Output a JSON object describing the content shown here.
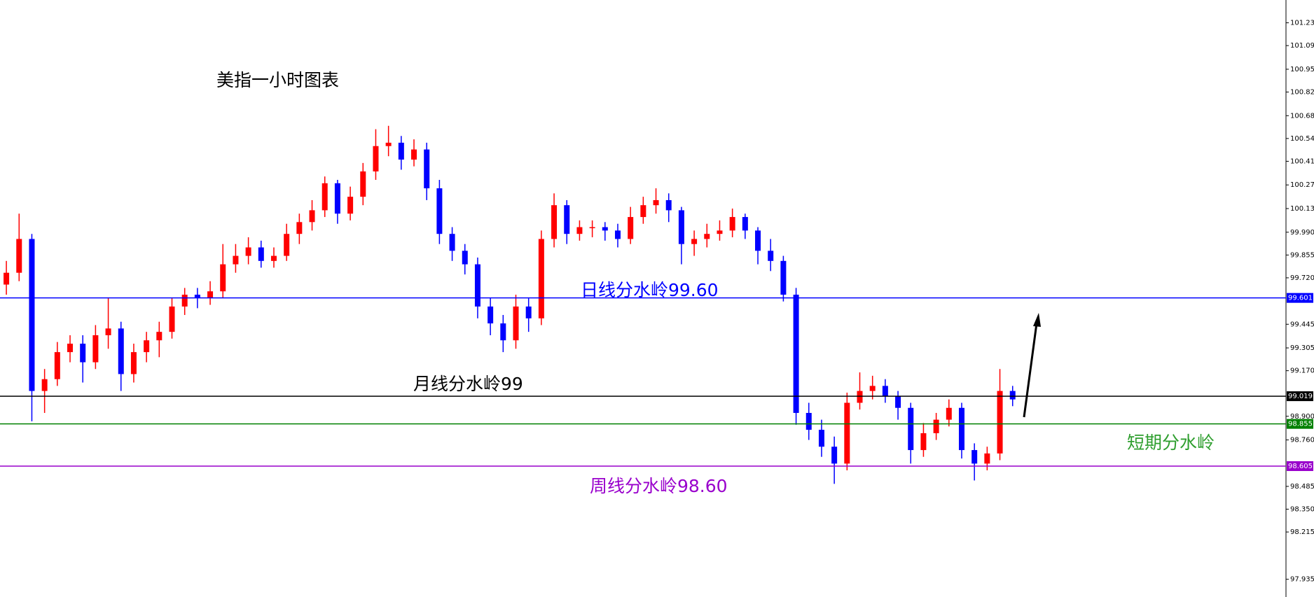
{
  "chart_data": {
    "type": "candlestick",
    "title": "美指一小时图表",
    "up_color": "#ff0000",
    "down_color": "#0000ff",
    "open": [
      99.68,
      99.75,
      99.95,
      99.05,
      99.12,
      99.28,
      99.33,
      99.22,
      99.38,
      99.42,
      99.15,
      99.28,
      99.35,
      99.4,
      99.55,
      99.62,
      99.6,
      99.64,
      99.8,
      99.85,
      99.9,
      99.82,
      99.85,
      99.98,
      100.05,
      100.12,
      100.28,
      100.1,
      100.2,
      100.35,
      100.5,
      100.52,
      100.42,
      100.48,
      100.25,
      99.98,
      99.88,
      99.8,
      99.55,
      99.45,
      99.35,
      99.55,
      99.48,
      99.95,
      100.15,
      99.98,
      100.02,
      100.02,
      100.0,
      99.95,
      100.08,
      100.15,
      100.18,
      100.12,
      99.92,
      99.95,
      99.98,
      100.0,
      100.08,
      100.0,
      99.88,
      99.82,
      99.62,
      98.92,
      98.82,
      98.72,
      98.62,
      98.98,
      99.05,
      99.08,
      99.02,
      98.95,
      98.7,
      98.8,
      98.88,
      98.95,
      98.7,
      98.62,
      98.68,
      99.05
    ],
    "high": [
      99.82,
      100.1,
      99.98,
      99.18,
      99.34,
      99.38,
      99.38,
      99.44,
      99.6,
      99.46,
      99.33,
      99.4,
      99.46,
      99.6,
      99.66,
      99.66,
      99.7,
      99.92,
      99.92,
      99.96,
      99.94,
      99.9,
      100.04,
      100.1,
      100.18,
      100.32,
      100.3,
      100.26,
      100.4,
      100.6,
      100.62,
      100.56,
      100.54,
      100.52,
      100.3,
      100.02,
      99.92,
      99.84,
      99.6,
      99.5,
      99.62,
      99.6,
      100.0,
      100.22,
      100.18,
      100.06,
      100.06,
      100.05,
      100.04,
      100.14,
      100.2,
      100.25,
      100.22,
      100.14,
      100.0,
      100.04,
      100.06,
      100.13,
      100.1,
      100.02,
      99.95,
      99.85,
      99.66,
      98.98,
      98.88,
      98.78,
      99.04,
      99.16,
      99.14,
      99.12,
      99.05,
      98.98,
      98.86,
      98.92,
      99.0,
      98.98,
      98.74,
      98.72,
      99.18,
      99.08
    ],
    "low": [
      99.62,
      99.7,
      98.87,
      98.92,
      99.08,
      99.22,
      99.1,
      99.18,
      99.3,
      99.05,
      99.1,
      99.22,
      99.25,
      99.36,
      99.5,
      99.54,
      99.56,
      99.6,
      99.75,
      99.8,
      99.78,
      99.78,
      99.82,
      99.92,
      100.0,
      100.08,
      100.04,
      100.06,
      100.15,
      100.3,
      100.44,
      100.36,
      100.38,
      100.18,
      99.92,
      99.82,
      99.74,
      99.48,
      99.38,
      99.28,
      99.3,
      99.4,
      99.44,
      99.9,
      99.92,
      99.94,
      99.96,
      99.94,
      99.9,
      99.92,
      100.04,
      100.1,
      100.05,
      99.8,
      99.85,
      99.9,
      99.94,
      99.96,
      99.95,
      99.8,
      99.76,
      99.58,
      98.85,
      98.76,
      98.66,
      98.5,
      98.58,
      98.94,
      99.0,
      98.98,
      98.88,
      98.62,
      98.66,
      98.76,
      98.84,
      98.65,
      98.52,
      98.58,
      98.64,
      98.96
    ],
    "close": [
      99.75,
      99.95,
      99.05,
      99.12,
      99.28,
      99.33,
      99.22,
      99.38,
      99.42,
      99.15,
      99.28,
      99.35,
      99.4,
      99.55,
      99.62,
      99.6,
      99.64,
      99.8,
      99.85,
      99.9,
      99.82,
      99.85,
      99.98,
      100.05,
      100.12,
      100.28,
      100.1,
      100.2,
      100.35,
      100.5,
      100.52,
      100.42,
      100.48,
      100.25,
      99.98,
      99.88,
      99.8,
      99.55,
      99.45,
      99.35,
      99.55,
      99.48,
      99.95,
      100.15,
      99.98,
      100.02,
      100.02,
      100.0,
      99.95,
      100.08,
      100.15,
      100.18,
      100.12,
      99.92,
      99.95,
      99.98,
      100.0,
      100.08,
      100.0,
      99.88,
      99.82,
      99.62,
      98.92,
      98.82,
      98.72,
      98.62,
      98.98,
      99.05,
      99.08,
      99.02,
      98.95,
      98.7,
      98.8,
      98.88,
      98.95,
      98.7,
      98.62,
      98.68,
      99.05,
      99.0
    ],
    "ylim": [
      97.83,
      101.365
    ],
    "yticks": [
      {
        "value": 101.23,
        "label": "101.230"
      },
      101.095,
      100.955,
      {
        "value": 100.82,
        "label": "100.820"
      },
      {
        "value": 100.68,
        "label": "100.680"
      },
      100.545,
      {
        "value": 100.41,
        "label": "100.410"
      },
      {
        "value": 100.27,
        "label": "100.270"
      },
      {
        "value": 100.13,
        "label": "100.130"
      },
      {
        "value": 99.99,
        "label": "99.990"
      },
      99.855,
      {
        "value": 99.72,
        "label": "99.720"
      },
      99.445,
      99.305,
      {
        "value": 99.17,
        "label": "99.170"
      },
      {
        "value": 98.9,
        "label": "98.900"
      },
      {
        "value": 98.76,
        "label": "98.760"
      },
      98.485,
      {
        "value": 98.35,
        "label": "98.350"
      },
      98.215,
      97.935
    ],
    "levels": [
      {
        "value": 99.601,
        "color": "#0000ff"
      },
      {
        "value": 99.019,
        "color": "#000000"
      },
      {
        "value": 98.855,
        "color": "#008000"
      },
      {
        "value": 98.605,
        "color": "#9900cc"
      }
    ],
    "annotations": [
      {
        "text": "日线分水岭99.60",
        "color": "#0000ff"
      },
      {
        "text": "月线分水岭99",
        "color": "#000000"
      },
      {
        "text": "短期分水岭",
        "color": "#2e9e2e"
      },
      {
        "text": "周线分水岭98.60",
        "color": "#9900cc"
      }
    ]
  }
}
